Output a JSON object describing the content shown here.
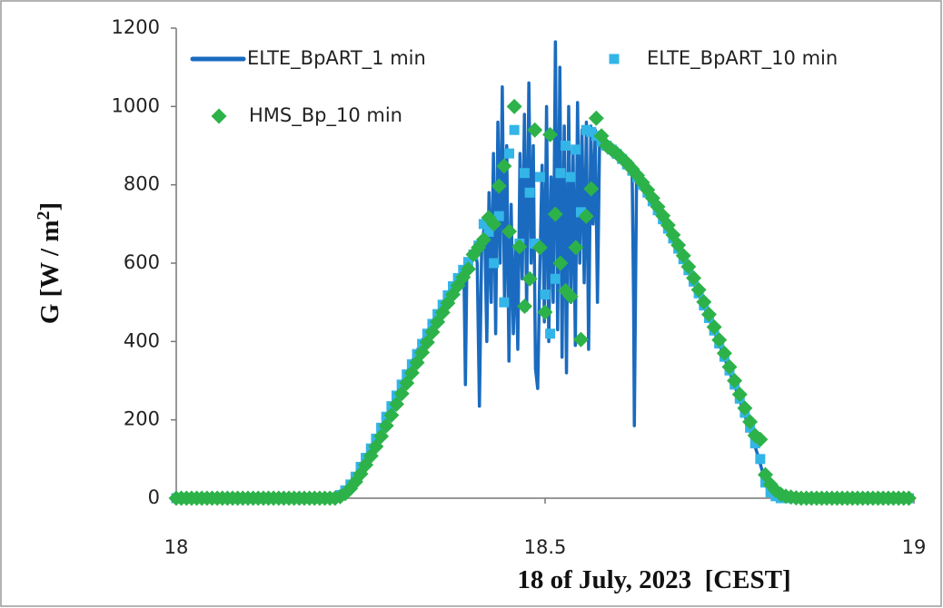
{
  "chart_data": {
    "type": "line-scatter",
    "ylabel": [
      "G [W / m",
      "2",
      "]"
    ],
    "xlabel": "18 of July, 2023  [CEST]",
    "xlim": [
      18,
      19
    ],
    "xticks": [
      18,
      18.5,
      19
    ],
    "ylim": [
      0,
      1200
    ],
    "yticks": [
      0,
      200,
      400,
      600,
      800,
      1000,
      1200
    ],
    "grid": false,
    "x": [
      18,
      18.0069,
      18.0139,
      18.0208,
      18.0278,
      18.0347,
      18.0417,
      18.0486,
      18.0556,
      18.0625,
      18.0694,
      18.0764,
      18.0833,
      18.0903,
      18.0972,
      18.1042,
      18.1111,
      18.1181,
      18.125,
      18.1319,
      18.1389,
      18.1458,
      18.1528,
      18.1597,
      18.1667,
      18.1736,
      18.1806,
      18.1875,
      18.1944,
      18.2014,
      18.2083,
      18.2153,
      18.2222,
      18.2292,
      18.2361,
      18.2431,
      18.25,
      18.2569,
      18.2639,
      18.2708,
      18.2778,
      18.2847,
      18.2917,
      18.2986,
      18.3056,
      18.3125,
      18.3194,
      18.3264,
      18.3333,
      18.3403,
      18.3472,
      18.3542,
      18.3611,
      18.3681,
      18.375,
      18.3819,
      18.3889,
      18.3958,
      18.4028,
      18.4097,
      18.4167,
      18.4236,
      18.4306,
      18.4375,
      18.4444,
      18.4514,
      18.4583,
      18.4653,
      18.4722,
      18.4792,
      18.4861,
      18.4931,
      18.5,
      18.5069,
      18.5139,
      18.5208,
      18.5278,
      18.5347,
      18.5417,
      18.5486,
      18.5556,
      18.5625,
      18.5694,
      18.5764,
      18.5833,
      18.5903,
      18.5972,
      18.6042,
      18.6111,
      18.6181,
      18.625,
      18.6319,
      18.6389,
      18.6458,
      18.6528,
      18.6597,
      18.6667,
      18.6736,
      18.6806,
      18.6875,
      18.6944,
      18.7014,
      18.7083,
      18.7153,
      18.7222,
      18.7292,
      18.7361,
      18.7431,
      18.75,
      18.7569,
      18.7639,
      18.7708,
      18.7778,
      18.7847,
      18.7917,
      18.7986,
      18.8056,
      18.8125,
      18.8194,
      18.8264,
      18.8333,
      18.8403,
      18.8472,
      18.8542,
      18.8611,
      18.8681,
      18.875,
      18.8819,
      18.8889,
      18.8958,
      18.9028,
      18.9097,
      18.9167,
      18.9236,
      18.9306,
      18.9375,
      18.9444,
      18.9514,
      18.9583,
      18.9653,
      18.9722,
      18.9792,
      18.9861,
      18.9931
    ],
    "series": [
      {
        "name": "ELTE_BpART_1 min",
        "style": "line",
        "color": "#1a6bbf",
        "x": [
          18,
          18.21,
          18.23,
          18.25,
          18.27,
          18.29,
          18.31,
          18.33,
          18.35,
          18.37,
          18.385,
          18.39,
          18.392,
          18.394,
          18.4,
          18.405,
          18.408,
          18.411,
          18.414,
          18.418,
          18.421,
          18.424,
          18.427,
          18.43,
          18.433,
          18.436,
          18.439,
          18.442,
          18.445,
          18.448,
          18.451,
          18.454,
          18.457,
          18.46,
          18.463,
          18.466,
          18.469,
          18.472,
          18.475,
          18.478,
          18.481,
          18.484,
          18.487,
          18.49,
          18.493,
          18.496,
          18.499,
          18.502,
          18.505,
          18.508,
          18.511,
          18.514,
          18.517,
          18.52,
          18.523,
          18.526,
          18.529,
          18.532,
          18.535,
          18.538,
          18.541,
          18.544,
          18.547,
          18.55,
          18.553,
          18.556,
          18.559,
          18.562,
          18.565,
          18.568,
          18.571,
          18.574,
          18.577,
          18.58,
          18.59,
          18.6,
          18.61,
          18.618,
          18.62,
          18.621,
          18.622,
          18.624,
          18.64,
          18.66,
          18.68,
          18.7,
          18.72,
          18.74,
          18.76,
          18.78,
          18.79,
          18.8,
          18.81,
          18.83,
          19
        ],
        "values": [
          0,
          0,
          18,
          80,
          150,
          230,
          310,
          390,
          460,
          525,
          570,
          580,
          290,
          600,
          620,
          635,
          600,
          235,
          640,
          700,
          400,
          780,
          500,
          880,
          420,
          960,
          600,
          1050,
          500,
          900,
          350,
          750,
          420,
          640,
          380,
          880,
          560,
          980,
          480,
          1060,
          600,
          900,
          330,
          280,
          600,
          850,
          450,
          1000,
          400,
          820,
          500,
          1165,
          430,
          1100,
          360,
          950,
          320,
          1000,
          500,
          880,
          390,
          1010,
          600,
          940,
          550,
          960,
          380,
          950,
          700,
          940,
          500,
          930,
          920,
          915,
          895,
          873,
          850,
          832,
          500,
          185,
          400,
          820,
          772,
          712,
          637,
          556,
          470,
          375,
          272,
          160,
          100,
          30,
          5,
          0,
          0
        ]
      },
      {
        "name": "ELTE_BpART_10 min",
        "style": "square",
        "color": "#33b5e8",
        "values": [
          0,
          0,
          0,
          0,
          0,
          0,
          0,
          0,
          0,
          0,
          0,
          0,
          0,
          0,
          0,
          0,
          0,
          0,
          0,
          0,
          0,
          0,
          0,
          0,
          0,
          0,
          0,
          0,
          0,
          0,
          0,
          2,
          8,
          20,
          35,
          55,
          80,
          103,
          127,
          152,
          180,
          208,
          235,
          262,
          290,
          316,
          342,
          368,
          394,
          420,
          445,
          470,
          494,
          518,
          541,
          562,
          583,
          603,
          622,
          645,
          700,
          680,
          600,
          720,
          500,
          880,
          940,
          650,
          830,
          780,
          650,
          820,
          520,
          420,
          560,
          830,
          900,
          820,
          890,
          730,
          940,
          935,
          925,
          910,
          900,
          890,
          879,
          866,
          852,
          836,
          819,
          800,
          780,
          758,
          735,
          712,
          688,
          663,
          637,
          610,
          582,
          553,
          523,
          492,
          460,
          428,
          395,
          361,
          326,
          290,
          254,
          218,
          180,
          140,
          100,
          40,
          15,
          5,
          0,
          0,
          0,
          0,
          0,
          0,
          0,
          0,
          0,
          0,
          0,
          0,
          0,
          0,
          0,
          0,
          0,
          0,
          0,
          0,
          0,
          0,
          0,
          0,
          0,
          0
        ]
      },
      {
        "name": "HMS_Bp_10 min",
        "style": "diamond",
        "color": "#2db24a",
        "values": [
          0,
          0,
          0,
          0,
          0,
          0,
          0,
          0,
          0,
          0,
          0,
          0,
          0,
          0,
          0,
          0,
          0,
          0,
          0,
          0,
          0,
          0,
          0,
          0,
          0,
          0,
          0,
          0,
          0,
          0,
          0,
          0,
          4,
          12,
          25,
          42,
          62,
          85,
          108,
          132,
          158,
          185,
          212,
          240,
          267,
          294,
          320,
          346,
          372,
          398,
          424,
          450,
          474,
          498,
          520,
          543,
          564,
          585,
          622,
          640,
          660,
          716,
          700,
          797,
          848,
          681,
          1000,
          642,
          490,
          560,
          940,
          640,
          475,
          928,
          725,
          600,
          530,
          515,
          640,
          405,
          720,
          790,
          970,
          925,
          900,
          890,
          880,
          868,
          855,
          840,
          824,
          806,
          787,
          766,
          744,
          721,
          697,
          672,
          646,
          619,
          591,
          562,
          532,
          501,
          469,
          437,
          404,
          370,
          335,
          300,
          265,
          230,
          195,
          160,
          150,
          60,
          35,
          20,
          10,
          5,
          3,
          1,
          0,
          0,
          0,
          0,
          0,
          0,
          0,
          0,
          0,
          0,
          0,
          0,
          0,
          0,
          0,
          0,
          0,
          0,
          0,
          0,
          0,
          0
        ]
      }
    ]
  }
}
